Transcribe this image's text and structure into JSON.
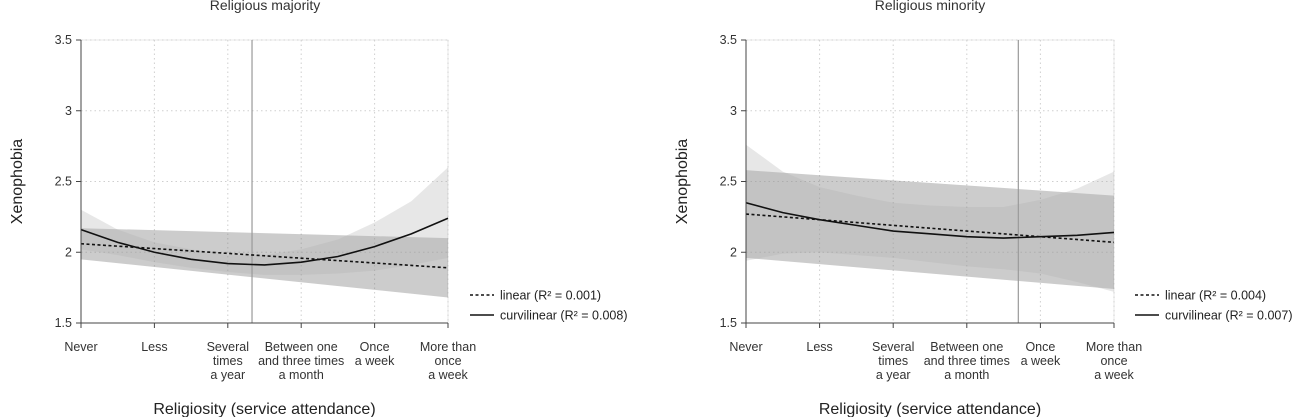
{
  "chart_data": [
    {
      "type": "line",
      "title": "Religious majority",
      "xlabel": "Religiosity (service attendance)",
      "ylabel": "Xenophobia",
      "ylim": [
        1.5,
        3.5
      ],
      "yticks": [
        "1.5",
        "2",
        "2.5",
        "3",
        "3.5"
      ],
      "categories": [
        [
          "Never"
        ],
        [
          "Less"
        ],
        [
          "Several",
          "times",
          "a year"
        ],
        [
          "Between one",
          "and three times",
          "a month"
        ],
        [
          "Once",
          "a week"
        ],
        [
          "More than",
          "once",
          "a week"
        ]
      ],
      "x": [
        0,
        1,
        2,
        3,
        4,
        5
      ],
      "reference_line_x": 2.33,
      "grid": true,
      "legend_position": "right",
      "series": [
        {
          "name": "linear (R² = 0.001)",
          "style": "dashed",
          "x": [
            0,
            5
          ],
          "values": [
            2.06,
            1.89
          ],
          "ci_lower": [
            1.95,
            1.68
          ],
          "ci_upper": [
            2.17,
            2.1
          ]
        },
        {
          "name": "curvilinear (R² = 0.008)",
          "style": "solid",
          "x": [
            0,
            0.5,
            1,
            1.5,
            2,
            2.5,
            3,
            3.5,
            4,
            4.5,
            5
          ],
          "values": [
            2.16,
            2.07,
            2.0,
            1.95,
            1.92,
            1.91,
            1.93,
            1.97,
            2.04,
            2.13,
            2.24
          ],
          "ci_lower": [
            2.02,
            1.98,
            1.93,
            1.89,
            1.86,
            1.84,
            1.84,
            1.85,
            1.87,
            1.91,
            1.96
          ],
          "ci_upper": [
            2.3,
            2.16,
            2.07,
            2.02,
            1.98,
            1.98,
            2.02,
            2.09,
            2.21,
            2.36,
            2.6
          ]
        }
      ]
    },
    {
      "type": "line",
      "title": "Religious minority",
      "xlabel": "Religiosity (service attendance)",
      "ylabel": "Xenophobia",
      "ylim": [
        1.5,
        3.5
      ],
      "yticks": [
        "1.5",
        "2",
        "2.5",
        "3",
        "3.5"
      ],
      "categories": [
        [
          "Never"
        ],
        [
          "Less"
        ],
        [
          "Several",
          "times",
          "a year"
        ],
        [
          "Between one",
          "and three times",
          "a month"
        ],
        [
          "Once",
          "a week"
        ],
        [
          "More than",
          "once",
          "a week"
        ]
      ],
      "x": [
        0,
        1,
        2,
        3,
        4,
        5
      ],
      "reference_line_x": 3.7,
      "grid": true,
      "legend_position": "right",
      "series": [
        {
          "name": "linear (R² = 0.004)",
          "style": "dashed",
          "x": [
            0,
            5
          ],
          "values": [
            2.27,
            2.07
          ],
          "ci_lower": [
            1.96,
            1.74
          ],
          "ci_upper": [
            2.58,
            2.4
          ]
        },
        {
          "name": "curvilinear (R² = 0.007)",
          "style": "solid",
          "x": [
            0,
            0.5,
            1,
            1.5,
            2,
            2.5,
            3,
            3.5,
            4,
            4.5,
            5
          ],
          "values": [
            2.35,
            2.28,
            2.23,
            2.19,
            2.15,
            2.13,
            2.11,
            2.1,
            2.11,
            2.12,
            2.14
          ],
          "ci_lower": [
            1.94,
            1.99,
            2.0,
            1.98,
            1.96,
            1.93,
            1.9,
            1.88,
            1.85,
            1.79,
            1.72
          ],
          "ci_upper": [
            2.76,
            2.57,
            2.46,
            2.4,
            2.35,
            2.33,
            2.32,
            2.32,
            2.37,
            2.45,
            2.57
          ]
        }
      ]
    }
  ]
}
